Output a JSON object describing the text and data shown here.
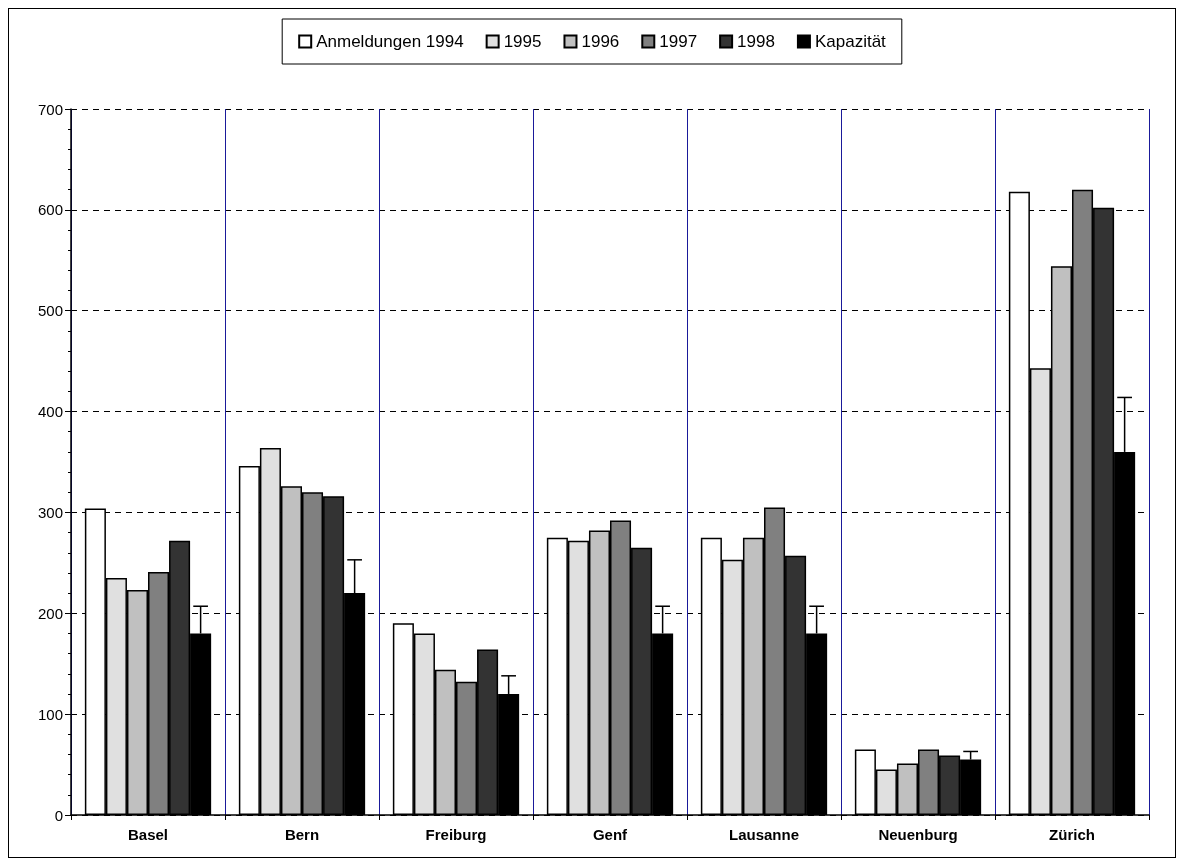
{
  "chart_data": {
    "type": "bar",
    "categories": [
      "Basel",
      "Bern",
      "Freiburg",
      "Genf",
      "Lausanne",
      "Neuenburg",
      "Zürich"
    ],
    "series": [
      {
        "name": "Anmeldungen 1994",
        "color": "#ffffff",
        "values": [
          304,
          346,
          190,
          275,
          275,
          65,
          618
        ]
      },
      {
        "name": "1995",
        "color": "#e0e0e0",
        "values": [
          235,
          364,
          180,
          272,
          253,
          45,
          443
        ]
      },
      {
        "name": "1996",
        "color": "#c0c0c0",
        "values": [
          223,
          326,
          144,
          282,
          275,
          51,
          544
        ]
      },
      {
        "name": "1997",
        "color": "#808080",
        "values": [
          241,
          320,
          132,
          292,
          305,
          65,
          620
        ]
      },
      {
        "name": "1998",
        "color": "#333333",
        "values": [
          272,
          316,
          164,
          265,
          257,
          59,
          602
        ]
      },
      {
        "name": "Kapazität",
        "color": "#000000",
        "values": [
          180,
          220,
          120,
          180,
          180,
          55,
          360
        ],
        "errors": [
          [
            180,
            207
          ],
          [
            220,
            253
          ],
          [
            120,
            138
          ],
          [
            180,
            207
          ],
          [
            180,
            207
          ],
          [
            55,
            63
          ],
          [
            360,
            414
          ]
        ]
      }
    ],
    "ylim": [
      0,
      700
    ],
    "yticks": [
      0,
      100,
      200,
      300,
      400,
      500,
      600,
      700
    ],
    "grid": true,
    "legend": "top"
  }
}
